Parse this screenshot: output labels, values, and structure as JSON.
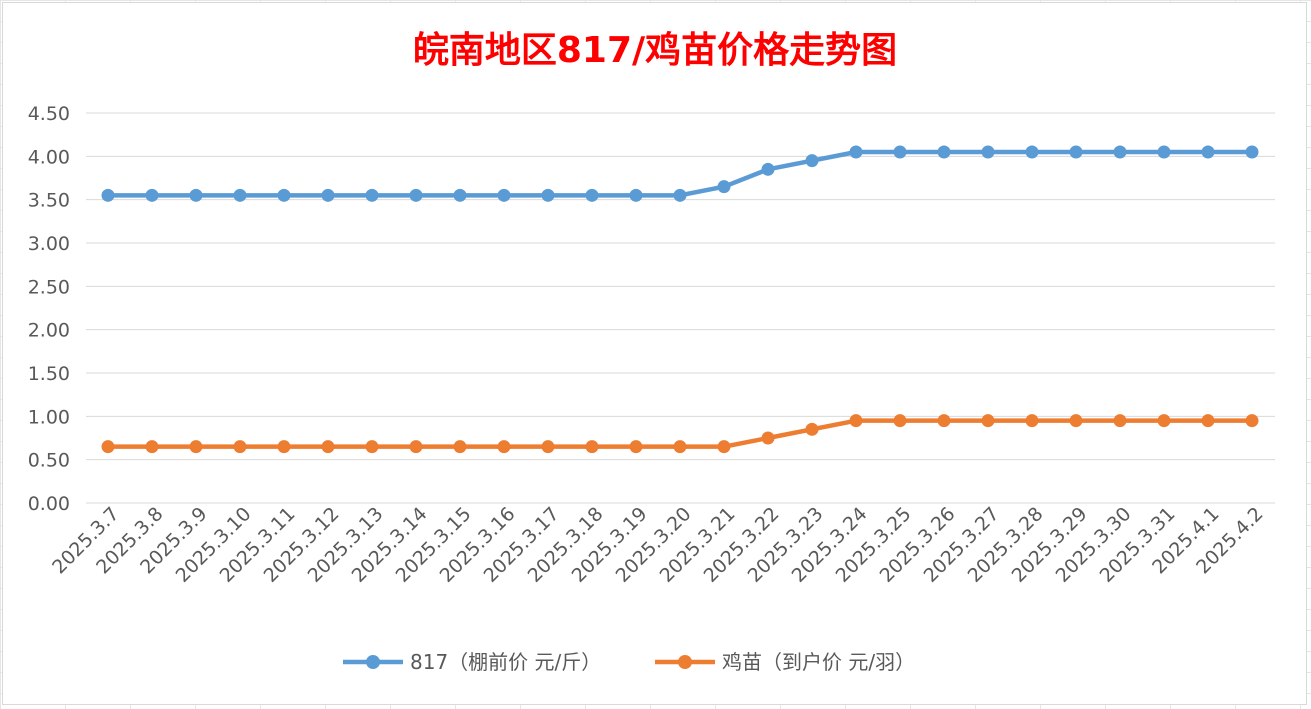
{
  "chart_data": {
    "type": "line",
    "title": "皖南地区817/鸡苗价格走势图",
    "title_color": "#ff0000",
    "categories": [
      "2025.3.7",
      "2025.3.8",
      "2025.3.9",
      "2025.3.10",
      "2025.3.11",
      "2025.3.12",
      "2025.3.13",
      "2025.3.14",
      "2025.3.15",
      "2025.3.16",
      "2025.3.17",
      "2025.3.18",
      "2025.3.19",
      "2025.3.20",
      "2025.3.21",
      "2025.3.22",
      "2025.3.23",
      "2025.3.24",
      "2025.3.25",
      "2025.3.26",
      "2025.3.27",
      "2025.3.28",
      "2025.3.29",
      "2025.3.30",
      "2025.3.31",
      "2025.4.1",
      "2025.4.2"
    ],
    "series": [
      {
        "name": "817（棚前价 元/斤）",
        "color": "#5b9bd5",
        "values": [
          3.55,
          3.55,
          3.55,
          3.55,
          3.55,
          3.55,
          3.55,
          3.55,
          3.55,
          3.55,
          3.55,
          3.55,
          3.55,
          3.55,
          3.65,
          3.85,
          3.95,
          4.05,
          4.05,
          4.05,
          4.05,
          4.05,
          4.05,
          4.05,
          4.05,
          4.05,
          4.05
        ]
      },
      {
        "name": "鸡苗（到户价 元/羽）",
        "color": "#ed7d31",
        "values": [
          0.65,
          0.65,
          0.65,
          0.65,
          0.65,
          0.65,
          0.65,
          0.65,
          0.65,
          0.65,
          0.65,
          0.65,
          0.65,
          0.65,
          0.65,
          0.75,
          0.85,
          0.95,
          0.95,
          0.95,
          0.95,
          0.95,
          0.95,
          0.95,
          0.95,
          0.95,
          0.95
        ]
      }
    ],
    "ylim": [
      0,
      4.5
    ],
    "yticks": [
      "0.00",
      "0.50",
      "1.00",
      "1.50",
      "2.00",
      "2.50",
      "3.00",
      "3.50",
      "4.00",
      "4.50"
    ],
    "grid": true,
    "legend": "bottom"
  }
}
